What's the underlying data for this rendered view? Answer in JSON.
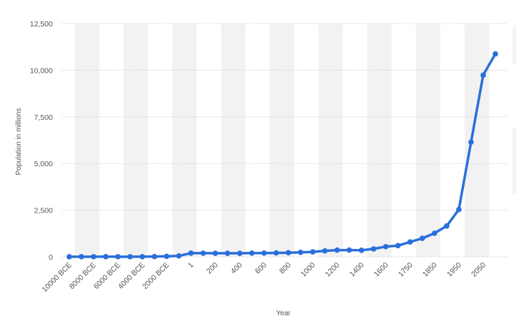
{
  "chart_data": {
    "type": "line",
    "title": "",
    "xlabel": "Year",
    "ylabel": "Population in millions",
    "ylim": [
      0,
      12500
    ],
    "yticks": [
      0,
      2500,
      5000,
      7500,
      10000,
      12500
    ],
    "ytick_labels": [
      "0",
      "2,500",
      "5,000",
      "7,500",
      "10,000",
      "12,500"
    ],
    "grid": true,
    "legend": "none",
    "series_color": "#2a6fdb",
    "band_color": "#f2f2f2",
    "categories": [
      "10000 BCE",
      "9000 BCE",
      "8000 BCE",
      "7000 BCE",
      "6000 BCE",
      "5000 BCE",
      "4000 BCE",
      "3000 BCE",
      "2000 BCE",
      "1000 BCE",
      "1",
      "100",
      "200",
      "300",
      "400",
      "500",
      "600",
      "700",
      "800",
      "900",
      "1000",
      "1100",
      "1200",
      "1300",
      "1400",
      "1500",
      "1600",
      "1700",
      "1750",
      "1800",
      "1850",
      "1900",
      "1950",
      "2000",
      "2050",
      "2100"
    ],
    "tick_labels": [
      "10000 BCE",
      "8000 BCE",
      "6000 BCE",
      "4000 BCE",
      "2000 BCE",
      "1",
      "200",
      "400",
      "600",
      "800",
      "1000",
      "1200",
      "1400",
      "1600",
      "1750",
      "1850",
      "1950",
      "2050"
    ],
    "series": [
      {
        "values": [
          4,
          5,
          5,
          7,
          5,
          5,
          7,
          14,
          27,
          50,
          200,
          195,
          190,
          190,
          190,
          200,
          200,
          210,
          220,
          240,
          265,
          320,
          360,
          360,
          350,
          425,
          545,
          600,
          795,
          990,
          1265,
          1650,
          2535,
          6145,
          9735,
          10875
        ]
      }
    ]
  }
}
